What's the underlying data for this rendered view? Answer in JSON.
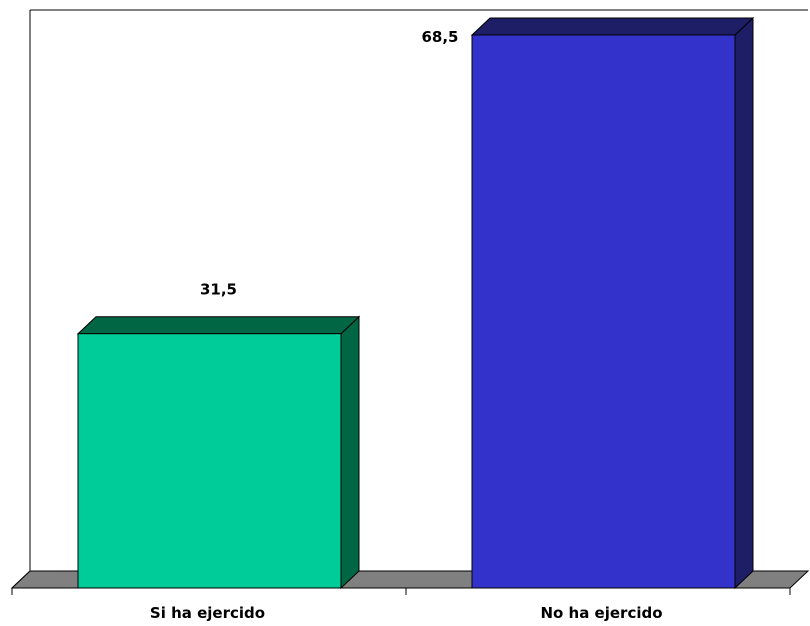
{
  "chart_data": {
    "type": "bar",
    "three_d": true,
    "categories": [
      "Si ha ejercido",
      "No ha ejercido"
    ],
    "values": [
      31.5,
      68.5
    ],
    "value_labels": [
      "31,5",
      "68,5"
    ],
    "colors": {
      "bars": [
        "#00CC99",
        "#3333CC"
      ],
      "bar_sides": [
        "#006644",
        "#1E1E66"
      ],
      "floor": "#808080",
      "background": "#FFFFFF"
    },
    "ylim": [
      0,
      68.5
    ],
    "grid": false,
    "legend": "none",
    "title": "",
    "xlabel": "",
    "ylabel": ""
  }
}
